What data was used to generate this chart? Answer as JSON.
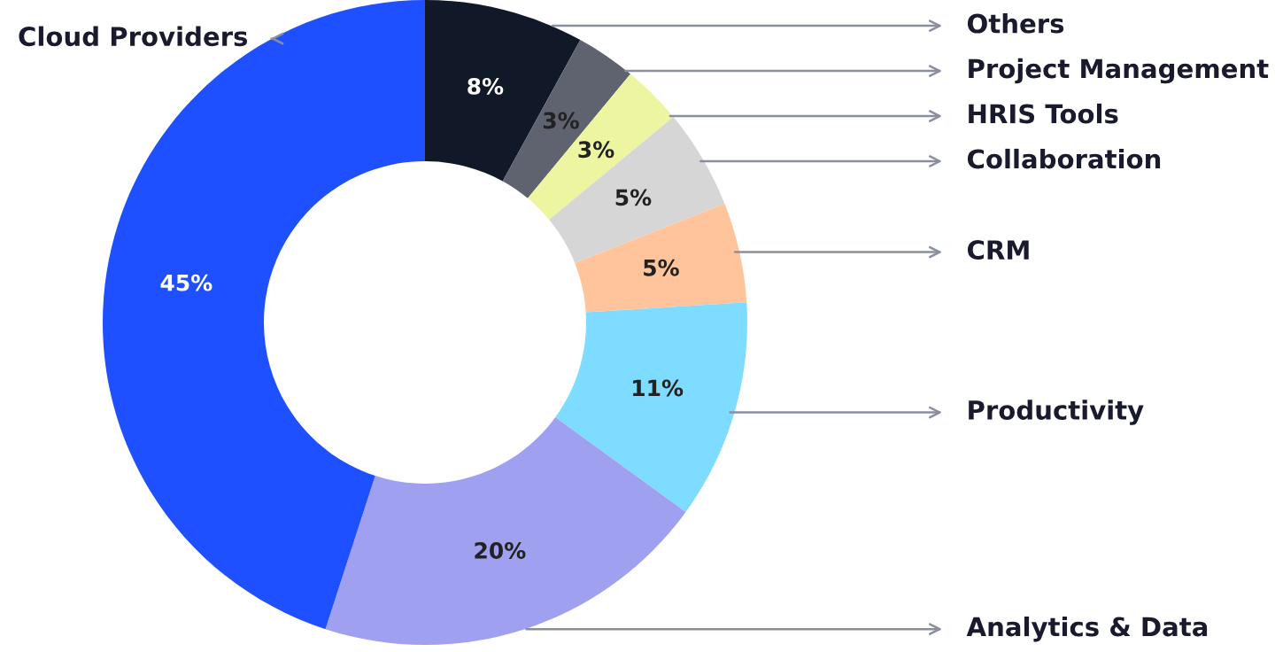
{
  "chart_data": {
    "type": "donut",
    "categories": [
      "Others",
      "Project Management",
      "HRIS Tools",
      "Collaboration",
      "CRM",
      "Productivity",
      "Analytics & Data",
      "Cloud Providers"
    ],
    "values": [
      8,
      3,
      3,
      5,
      5,
      11,
      20,
      45
    ],
    "value_labels": [
      "8%",
      "3%",
      "3%",
      "5%",
      "5%",
      "11%",
      "20%",
      "45%"
    ],
    "colors": [
      "#111827",
      "#5f6370",
      "#eef5a0",
      "#d6d6d6",
      "#ffc49b",
      "#7ddcff",
      "#9fa0f0",
      "#1e50ff"
    ],
    "legend": false
  }
}
